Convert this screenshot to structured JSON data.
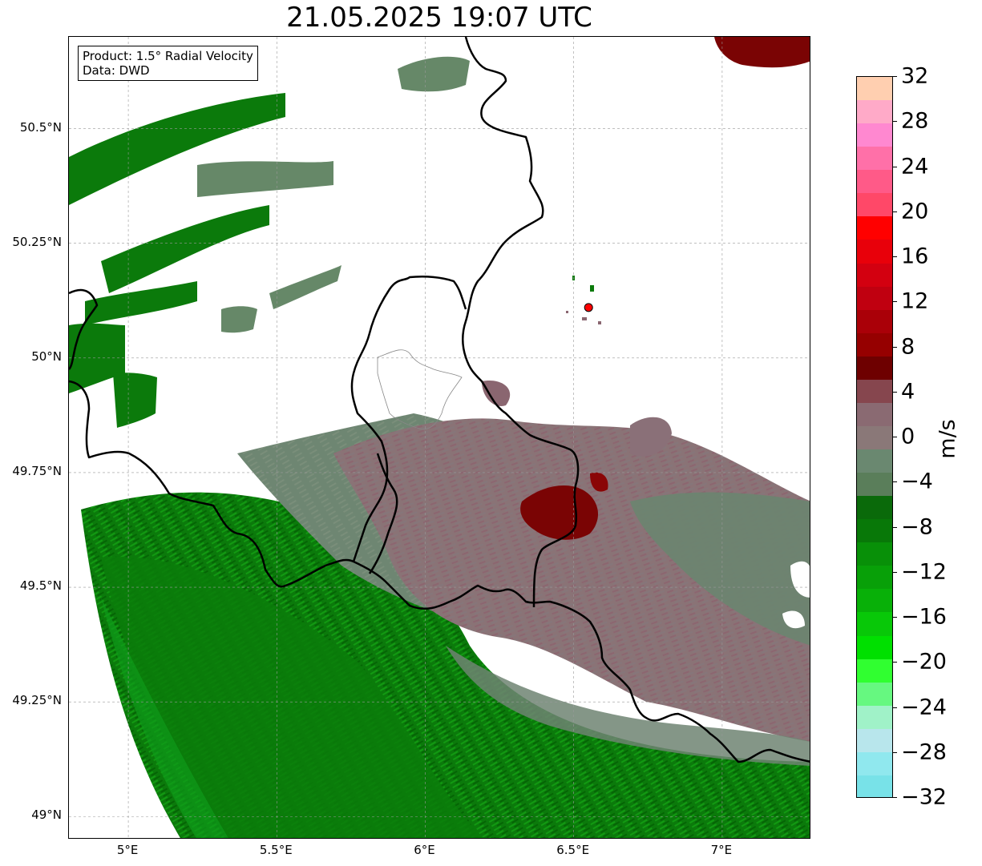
{
  "title": "21.05.2025 19:07 UTC",
  "info_box": {
    "product_line": "Product: 1.5° Radial Velocity",
    "data_line": "Data: DWD"
  },
  "map": {
    "lon_range": [
      4.8,
      7.3
    ],
    "lat_range": [
      48.95,
      50.7
    ],
    "lat_ticks": [
      {
        "value": 50.5,
        "label": "50.5°N"
      },
      {
        "value": 50.25,
        "label": "50.25°N"
      },
      {
        "value": 50.0,
        "label": "50°N"
      },
      {
        "value": 49.75,
        "label": "49.75°N"
      },
      {
        "value": 49.5,
        "label": "49.5°N"
      },
      {
        "value": 49.25,
        "label": "49.25°N"
      },
      {
        "value": 49.0,
        "label": "49°N"
      }
    ],
    "lon_ticks": [
      {
        "value": 5.0,
        "label": "5°E"
      },
      {
        "value": 5.5,
        "label": "5.5°E"
      },
      {
        "value": 6.0,
        "label": "6°E"
      },
      {
        "value": 6.5,
        "label": "6.5°E"
      },
      {
        "value": 7.0,
        "label": "7°E"
      }
    ],
    "grid": true,
    "radar_site": {
      "lon": 6.55,
      "lat": 50.11,
      "color": "#ff0000"
    }
  },
  "colorbar": {
    "unit": "m/s",
    "min": -32,
    "max": 32,
    "tick_labels": [
      "32",
      "28",
      "24",
      "20",
      "16",
      "12",
      "8",
      "4",
      "0",
      "−4",
      "−8",
      "−12",
      "−16",
      "−20",
      "−24",
      "−28",
      "−32"
    ],
    "tick_values": [
      32,
      28,
      24,
      20,
      16,
      12,
      8,
      4,
      0,
      -4,
      -8,
      -12,
      -16,
      -20,
      -24,
      -28,
      -32
    ],
    "colors_top_to_bottom": [
      "#ffcfb0",
      "#ffaac8",
      "#ff88d0",
      "#ff70a8",
      "#ff5a88",
      "#ff4868",
      "#ff0000",
      "#e8000a",
      "#d30010",
      "#c00010",
      "#aa0008",
      "#960000",
      "#6e0000",
      "#86464e",
      "#8a6a72",
      "#8a7878",
      "#6a8870",
      "#5a7e5a",
      "#0a6a0a",
      "#087808",
      "#089008",
      "#08a008",
      "#08b008",
      "#08c808",
      "#00e000",
      "#30ff30",
      "#66f880",
      "#a0f2c8",
      "#b8e6ec",
      "#90e8ee",
      "#78e2e8"
    ]
  }
}
